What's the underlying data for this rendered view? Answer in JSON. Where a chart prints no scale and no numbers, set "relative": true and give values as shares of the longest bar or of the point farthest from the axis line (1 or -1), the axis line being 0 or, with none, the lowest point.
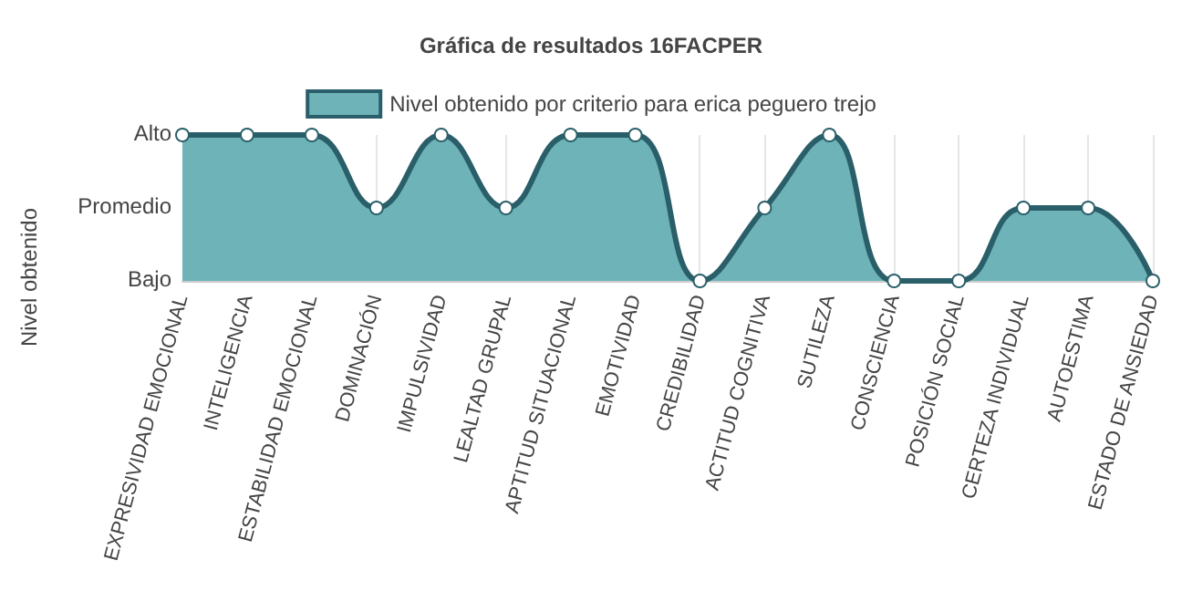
{
  "chart_data": {
    "type": "area",
    "title": "Gráfica de resultados 16FACPER",
    "ylabel": "Nivel obtenido",
    "categories": [
      "EXPRESIVIDAD EMOCIONAL",
      "INTELIGENCIA",
      "ESTABILIDAD EMOCIONAL",
      "DOMINACIÓN",
      "IMPULSIVIDAD",
      "LEALTAD GRUPAL",
      "APTITUD SITUACIONAL",
      "EMOTIVIDAD",
      "CREDIBILIDAD",
      "ACTITUD COGNITIVA",
      "SUTILEZA",
      "CONSCIENCIA",
      "POSICIÓN SOCIAL",
      "CERTEZA INDIVIDUAL",
      "AUTOESTIMA",
      "ESTADO DE ANSIEDAD"
    ],
    "series": [
      {
        "name": "Nivel obtenido por criterio para erica peguero trejo",
        "color": "#2a5f6a",
        "values": [
          1,
          1,
          1,
          0.5,
          1,
          0.5,
          1,
          1,
          0,
          0.5,
          1,
          0,
          0,
          0.5,
          0.5,
          0
        ]
      }
    ],
    "relative": true,
    "annotations": [
      "Alto",
      "Promedio",
      "Bajo"
    ],
    "grid": "x",
    "legend": "top",
    "marker": "circle",
    "line_style": "solid"
  }
}
